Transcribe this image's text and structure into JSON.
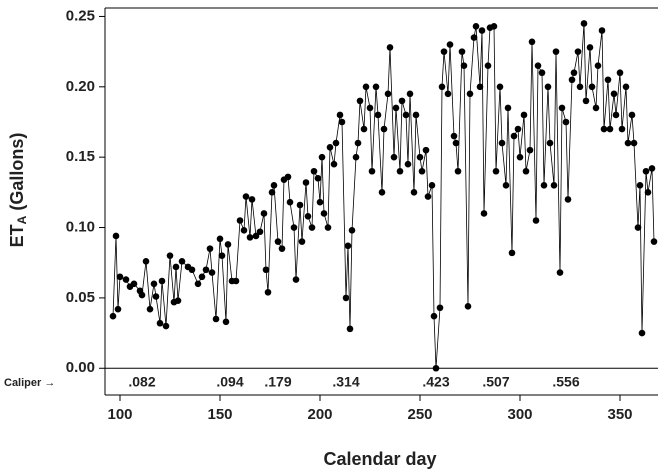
{
  "chart_data": {
    "type": "line",
    "ylabel": "ET",
    "ylabel_sub": "A",
    "ylabel_rest": " (Gallons)",
    "xlabel": "Calendar day",
    "x": [
      96.5,
      98,
      99,
      100,
      103,
      105,
      107,
      110,
      111,
      113,
      115,
      117,
      118,
      120,
      121,
      123,
      125,
      127,
      128,
      129,
      131,
      134,
      136,
      139,
      141,
      143,
      145,
      146,
      148,
      150,
      151,
      153,
      154,
      156,
      158,
      160,
      162,
      163,
      165,
      166,
      168,
      170,
      172,
      173,
      174,
      176,
      177,
      179,
      181,
      182,
      184,
      185,
      187,
      188,
      190,
      191,
      193,
      194,
      196,
      197,
      199,
      200,
      201,
      202,
      204,
      205,
      207,
      208,
      210,
      211,
      213,
      214,
      215,
      216,
      218,
      219,
      220,
      222,
      223,
      225,
      226,
      228,
      229,
      231,
      232,
      234,
      235,
      237,
      238,
      240,
      241,
      243,
      244,
      245,
      247,
      248,
      250,
      251,
      253,
      254,
      256,
      257,
      258,
      260,
      261,
      262,
      264,
      265,
      267,
      268,
      269,
      271,
      272,
      274,
      275,
      277,
      278,
      280,
      281,
      282,
      284,
      285,
      287,
      288,
      290,
      291,
      293,
      294,
      296,
      297,
      299,
      300,
      302,
      303,
      305,
      306,
      308,
      309,
      311,
      312,
      314,
      315,
      317,
      318,
      320,
      321,
      323,
      324,
      326,
      327,
      329,
      330,
      332,
      333,
      335,
      336,
      338,
      339,
      341,
      342,
      344,
      345,
      347,
      348,
      350,
      351,
      353,
      354,
      356,
      357,
      359,
      360,
      361,
      363,
      364,
      366,
      367
    ],
    "series": [
      {
        "color": "#000000",
        "values": [
          0.037,
          0.094,
          0.042,
          0.065,
          0.063,
          0.058,
          0.06,
          0.055,
          0.052,
          0.076,
          0.042,
          0.06,
          0.051,
          0.032,
          0.062,
          0.03,
          0.08,
          0.047,
          0.072,
          0.048,
          0.076,
          0.072,
          0.07,
          0.06,
          0.065,
          0.07,
          0.085,
          0.068,
          0.035,
          0.092,
          0.08,
          0.033,
          0.088,
          0.062,
          0.062,
          0.105,
          0.098,
          0.122,
          0.093,
          0.12,
          0.094,
          0.097,
          0.11,
          0.07,
          0.054,
          0.125,
          0.13,
          0.09,
          0.085,
          0.134,
          0.136,
          0.118,
          0.1,
          0.063,
          0.116,
          0.09,
          0.132,
          0.108,
          0.1,
          0.14,
          0.135,
          0.118,
          0.15,
          0.11,
          0.1,
          0.157,
          0.145,
          0.16,
          0.18,
          0.175,
          0.05,
          0.087,
          0.028,
          0.098,
          0.15,
          0.16,
          0.19,
          0.17,
          0.2,
          0.185,
          0.14,
          0.2,
          0.18,
          0.125,
          0.17,
          0.195,
          0.228,
          0.15,
          0.185,
          0.14,
          0.19,
          0.18,
          0.145,
          0.195,
          0.125,
          0.18,
          0.15,
          0.14,
          0.155,
          0.122,
          0.13,
          0.037,
          0.0,
          0.043,
          0.2,
          0.225,
          0.195,
          0.23,
          0.165,
          0.16,
          0.14,
          0.225,
          0.215,
          0.044,
          0.195,
          0.235,
          0.243,
          0.2,
          0.24,
          0.11,
          0.215,
          0.242,
          0.243,
          0.14,
          0.2,
          0.16,
          0.13,
          0.185,
          0.082,
          0.165,
          0.17,
          0.15,
          0.18,
          0.14,
          0.155,
          0.232,
          0.105,
          0.215,
          0.21,
          0.13,
          0.2,
          0.16,
          0.13,
          0.225,
          0.068,
          0.185,
          0.175,
          0.12,
          0.205,
          0.21,
          0.225,
          0.2,
          0.245,
          0.19,
          0.228,
          0.2,
          0.185,
          0.215,
          0.24,
          0.17,
          0.205,
          0.17,
          0.195,
          0.18,
          0.21,
          0.17,
          0.2,
          0.16,
          0.18,
          0.16,
          0.1,
          0.13,
          0.025,
          0.14,
          0.125,
          0.142,
          0.09
        ]
      }
    ],
    "xlim": [
      92.5,
      369
    ],
    "xticks": [
      100,
      150,
      200,
      250,
      300,
      350
    ],
    "ylim": [
      -0.019,
      0.256
    ],
    "yticks": [
      {
        "value": 0,
        "label": "0.00"
      },
      {
        "value": 0.05,
        "label": "0.05"
      },
      {
        "value": 0.1,
        "label": "0.10"
      },
      {
        "value": 0.15,
        "label": "0.15"
      },
      {
        "value": 0.2,
        "label": "0.20"
      },
      {
        "value": 0.25,
        "label": "0.25"
      }
    ],
    "zero_line": true,
    "caliper": {
      "label": "Caliper →",
      "days": [
        111,
        155,
        179,
        213,
        258,
        288,
        323
      ],
      "labels": [
        ".082",
        ".094",
        ".179",
        ".314",
        ".423",
        ".507",
        ".556"
      ]
    }
  }
}
